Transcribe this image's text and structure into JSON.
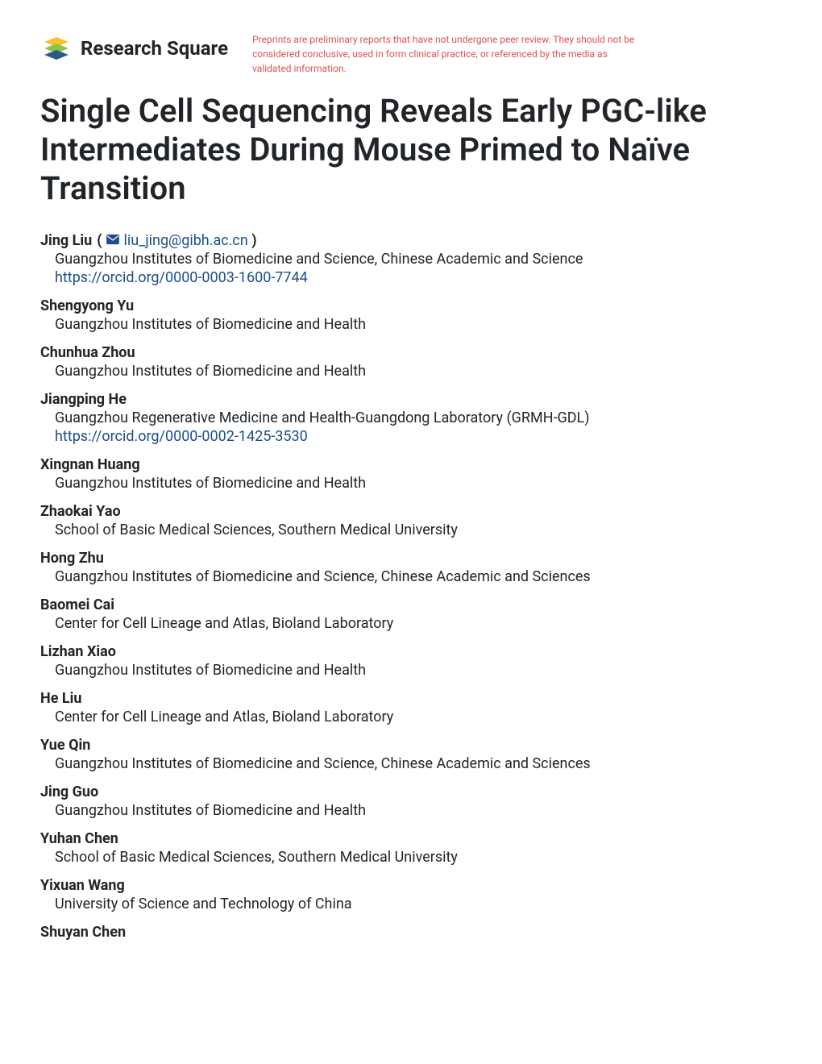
{
  "logo": {
    "text": "Research Square"
  },
  "disclaimer": "Preprints are preliminary reports that have not undergone peer review. They should not be considered conclusive, used in form clinical practice, or referenced by the media as validated information.",
  "title": "Single Cell Sequencing Reveals Early PGC-like Intermediates During Mouse Primed to Naïve Transition",
  "authors": [
    {
      "name": "Jing Liu",
      "email": "liu_jing@gibh.ac.cn",
      "affiliation": "Guangzhou Institutes of Biomedicine and Science, Chinese Academic and Science",
      "orcid": "https://orcid.org/0000-0003-1600-7744",
      "corresponding": true
    },
    {
      "name": "Shengyong Yu",
      "affiliation": "Guangzhou Institutes of Biomedicine and Health"
    },
    {
      "name": "Chunhua Zhou",
      "affiliation": "Guangzhou Institutes of Biomedicine and Health"
    },
    {
      "name": "Jiangping He",
      "affiliation": "Guangzhou Regenerative Medicine and Health-Guangdong Laboratory (GRMH-GDL)",
      "orcid": "https://orcid.org/0000-0002-1425-3530"
    },
    {
      "name": "Xingnan Huang",
      "affiliation": "Guangzhou Institutes of Biomedicine and Health"
    },
    {
      "name": "Zhaokai Yao",
      "affiliation": "School of Basic Medical Sciences, Southern Medical University"
    },
    {
      "name": "Hong Zhu",
      "affiliation": "Guangzhou Institutes of Biomedicine and Science, Chinese Academic and Sciences"
    },
    {
      "name": "Baomei Cai",
      "affiliation": "Center for Cell Lineage and Atlas, Bioland Laboratory"
    },
    {
      "name": "Lizhan Xiao",
      "affiliation": "Guangzhou Institutes of Biomedicine and Health"
    },
    {
      "name": "He Liu",
      "affiliation": "Center for Cell Lineage and Atlas, Bioland Laboratory"
    },
    {
      "name": "Yue Qin",
      "affiliation": "Guangzhou Institutes of Biomedicine and Science, Chinese Academic and Sciences"
    },
    {
      "name": "Jing Guo",
      "affiliation": "Guangzhou Institutes of Biomedicine and Health"
    },
    {
      "name": "Yuhan Chen",
      "affiliation": "School of Basic Medical Sciences, Southern Medical University"
    },
    {
      "name": "Yixuan Wang",
      "affiliation": "University of Science and Technology of China"
    },
    {
      "name": "Shuyan Chen",
      "affiliation": ""
    }
  ],
  "colors": {
    "link": "#1b4f8a",
    "disclaimer": "#d9534f",
    "text": "#212529",
    "logo_green": "#8bc34a",
    "logo_dark_green": "#689f38",
    "logo_blue": "#2b5b84",
    "logo_yellow": "#fbc02d"
  }
}
